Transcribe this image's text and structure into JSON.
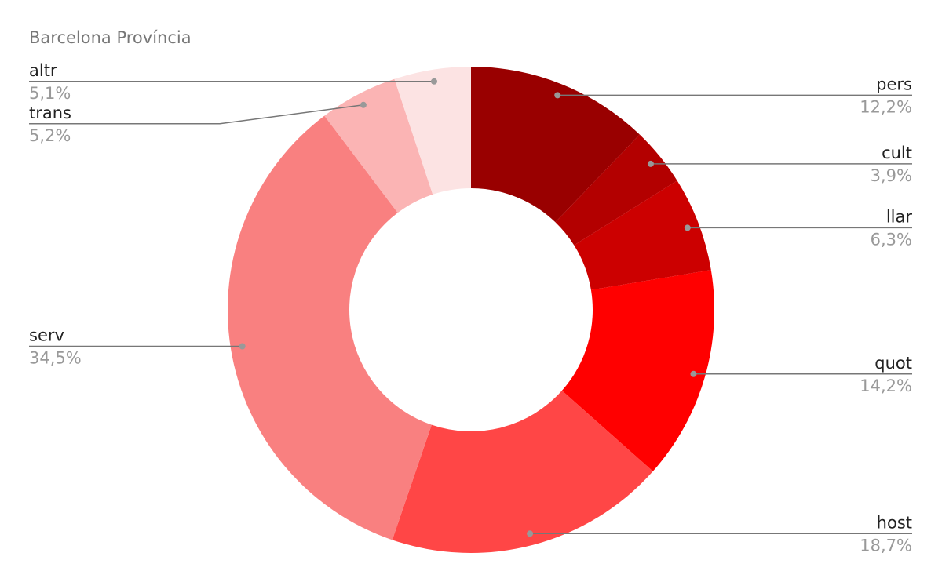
{
  "chart_data": {
    "type": "donut",
    "title": "Barcelona Província",
    "categories": [
      "pers",
      "cult",
      "llar",
      "quot",
      "host",
      "serv",
      "trans",
      "altr"
    ],
    "values": [
      12.2,
      3.9,
      6.3,
      14.2,
      18.7,
      34.5,
      5.2,
      5.1
    ],
    "value_labels": [
      "12,2%",
      "3,9%",
      "6,3%",
      "14,2%",
      "18,7%",
      "34,5%",
      "5,2%",
      "5,1%"
    ],
    "colors": [
      "#990000",
      "#b30000",
      "#cc0000",
      "#ff0000",
      "#ff4646",
      "#f98080",
      "#fbb4b4",
      "#fce3e3"
    ]
  }
}
